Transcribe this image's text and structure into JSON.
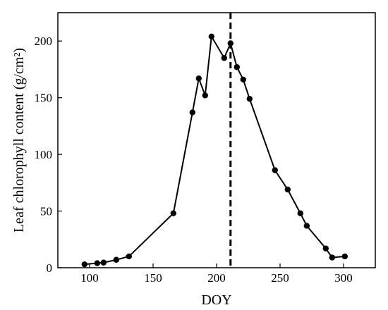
{
  "chart_data": {
    "type": "line",
    "title": "",
    "xlabel": "DOY",
    "ylabel": "Leaf chlorophyll content (g/cm²)",
    "xlim": [
      75,
      325
    ],
    "ylim": [
      0,
      225
    ],
    "x_ticks": [
      100,
      150,
      200,
      250,
      300
    ],
    "y_ticks": [
      0,
      50,
      100,
      150,
      200
    ],
    "grid": false,
    "legend": "none",
    "series": [
      {
        "x": [
          96,
          106,
          111,
          121,
          131,
          166,
          181,
          186,
          191,
          196,
          206,
          211,
          216,
          221,
          226,
          246,
          256,
          266,
          271,
          286,
          291,
          301
        ],
        "y": [
          3,
          4,
          4.5,
          7,
          10,
          48,
          137,
          167,
          152,
          204,
          185,
          198,
          177,
          166,
          149,
          86,
          69,
          48,
          37,
          17,
          9,
          10
        ],
        "color": "#000000",
        "marker": "circle"
      }
    ],
    "reference_line": {
      "x": 211,
      "style": "dashed",
      "color": "#000000"
    }
  }
}
